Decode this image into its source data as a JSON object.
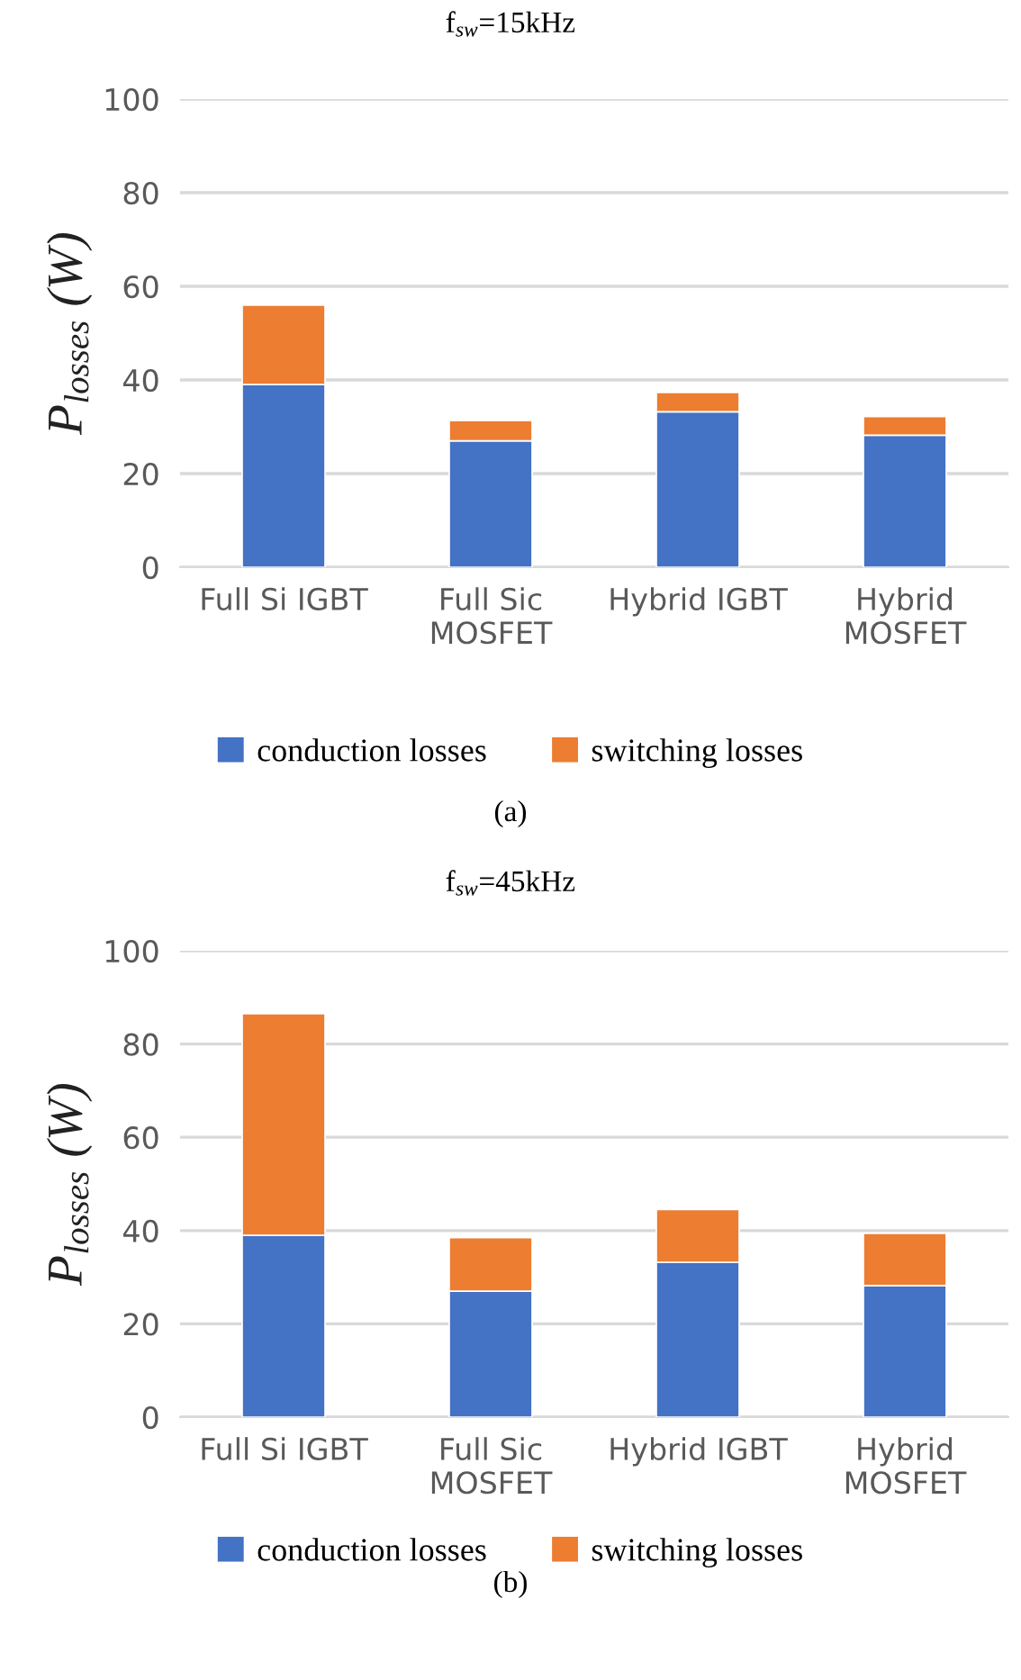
{
  "chart_data": [
    {
      "type": "bar",
      "title": "f$_{sw}$=15kHz",
      "ylabel": "P$_{losses}$ (W)",
      "categories": [
        "Full Si IGBT",
        "Full Sic\nMOSFET",
        "Hybrid IGBT",
        "Hybrid\nMOSFET"
      ],
      "stacked": true,
      "series": [
        {
          "name": "conduction losses",
          "color": "#4472c4",
          "values": [
            39,
            27,
            33.2,
            28.2
          ]
        },
        {
          "name": "switching losses",
          "color": "#ed7d31",
          "values": [
            17,
            4.3,
            4.1,
            4.0
          ]
        }
      ],
      "ylim": [
        0,
        100
      ],
      "yticks": [
        0,
        20,
        40,
        60,
        80,
        100
      ],
      "grid": "y",
      "legend": "bottom",
      "annotations": [
        "(a)"
      ]
    },
    {
      "type": "bar",
      "title": "f$_{sw}$=45kHz",
      "ylabel": "P$_{losses}$ (W)",
      "categories": [
        "Full Si IGBT",
        "Full Sic\nMOSFET",
        "Hybrid IGBT",
        "Hybrid\nMOSFET"
      ],
      "stacked": true,
      "series": [
        {
          "name": "conduction losses",
          "color": "#4472c4",
          "values": [
            39,
            27,
            33.2,
            28.2
          ]
        },
        {
          "name": "switching losses",
          "color": "#ed7d31",
          "values": [
            47.5,
            11.5,
            11.3,
            11.2
          ]
        }
      ],
      "ylim": [
        0,
        100
      ],
      "yticks": [
        0,
        20,
        40,
        60,
        80,
        100
      ],
      "grid": "y",
      "legend": "bottom",
      "annotations": [
        "(b)"
      ]
    }
  ]
}
